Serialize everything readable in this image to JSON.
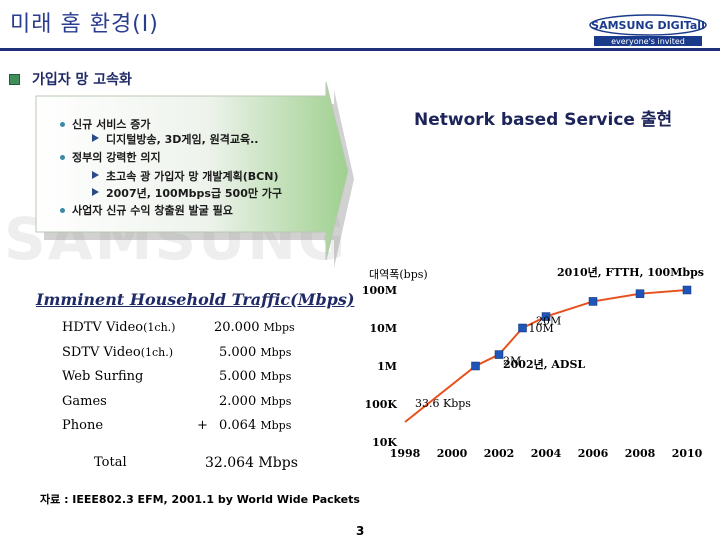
{
  "slide": {
    "title": "미래 홈 환경(I)",
    "logo_brand": "SAMSUNG DIGITall",
    "logo_tagline": "everyone's invited",
    "watermark": "SAMSUNG",
    "section_heading": "가입자 망 고속화",
    "callout": "Network based Service 출현",
    "bullets": [
      {
        "level": 1,
        "text": "신규 서비스 증가"
      },
      {
        "level": 2,
        "text": "디지털방송, 3D게임, 원격교육.."
      },
      {
        "level": 1,
        "text": "정부의 강력한 의지"
      },
      {
        "level": 2,
        "text": "초고속 광 가입자 망 개발계획(BCN)"
      },
      {
        "level": 2,
        "text": "2007년, 100Mbps급 500만 가구"
      },
      {
        "level": 1,
        "text": "사업자 신규 수익 창출원 발굴 필요"
      }
    ],
    "traffic": {
      "heading": "Imminent Household Traffic(Mbps)",
      "rows": [
        {
          "label": "HDTV Video",
          "note": "(1ch.)",
          "op": "",
          "value": "20.000",
          "unit": "Mbps"
        },
        {
          "label": "SDTV Video",
          "note": "(1ch.)",
          "op": "",
          "value": "5.000",
          "unit": "Mbps"
        },
        {
          "label": "Web Surfing",
          "note": "",
          "op": "",
          "value": "5.000",
          "unit": "Mbps"
        },
        {
          "label": "Games",
          "note": "",
          "op": "",
          "value": "2.000",
          "unit": "Mbps"
        },
        {
          "label": "Phone",
          "note": "",
          "op": "+",
          "value": "0.064",
          "unit": "Mbps"
        }
      ],
      "total_label": "Total",
      "total_value": "32.064 Mbps"
    },
    "source": "자료 : IEEE802.3 EFM, 2001.1 by World Wide Packets",
    "page_number": "3"
  },
  "chart_data": {
    "type": "line",
    "ylabel": "대역폭(bps)",
    "y_scale": "log",
    "yticks": [
      "10K",
      "100K",
      "1M",
      "10M",
      "100M"
    ],
    "y_tick_values": [
      10000,
      100000,
      1000000,
      10000000,
      100000000
    ],
    "xticks": [
      "1998",
      "2000",
      "2002",
      "2004",
      "2006",
      "2008",
      "2010"
    ],
    "x": [
      1998,
      2001,
      2002,
      2003,
      2004,
      2006,
      2008,
      2010
    ],
    "y": [
      33600,
      1000000,
      2000000,
      10000000,
      20000000,
      50000000,
      80000000,
      100000000
    ],
    "series_color": "#e8511c",
    "marker_color": "#1f55b8",
    "annotations": [
      {
        "text": "2010년, FTTH, 100Mbps",
        "x": 2010,
        "y": 100000000
      },
      {
        "text": "20M",
        "x": 2004,
        "y": 20000000
      },
      {
        "text": "10M",
        "x": 2003,
        "y": 10000000
      },
      {
        "text": "2M",
        "x": 2002,
        "y": 2000000
      },
      {
        "text": "2002년, ADSL",
        "x": 2002,
        "y": 1000000
      },
      {
        "text": "33.6 Kbps",
        "x": 1998,
        "y": 33600
      }
    ]
  }
}
